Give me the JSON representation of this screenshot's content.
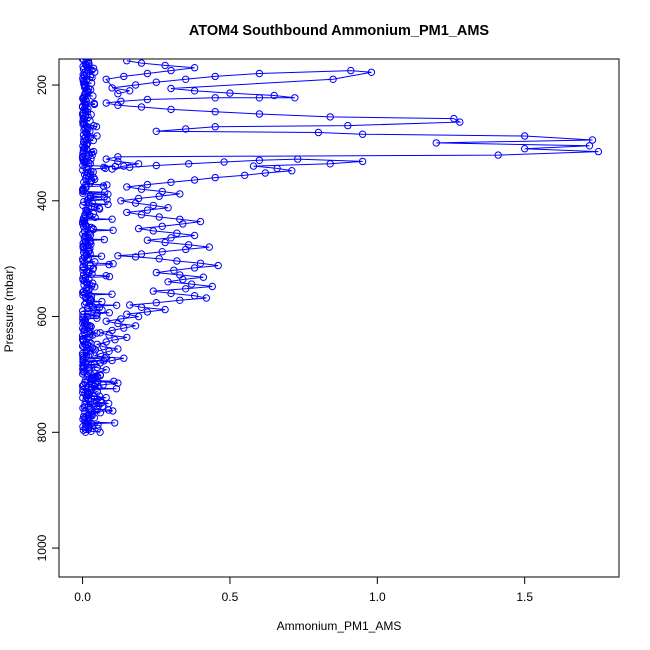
{
  "chart_data": {
    "type": "scatter",
    "title": "ATOM4 Southbound Ammonium_PM1_AMS",
    "xlabel": "Ammonium_PM1_AMS",
    "ylabel": "Pressure (mbar)",
    "xlim": [
      -0.08,
      1.82
    ],
    "ylim": [
      1050,
      155
    ],
    "y_reversed": true,
    "grid": false,
    "legend": "none",
    "x_ticks": [
      {
        "value": 0.0,
        "label": "0.0"
      },
      {
        "value": 0.5,
        "label": "0.5"
      },
      {
        "value": 1.0,
        "label": "1.0"
      },
      {
        "value": 1.5,
        "label": "1.5"
      }
    ],
    "y_ticks": [
      {
        "value": 200,
        "label": "200"
      },
      {
        "value": 400,
        "label": "400"
      },
      {
        "value": 600,
        "label": "600"
      },
      {
        "value": 800,
        "label": "800"
      },
      {
        "value": 1000,
        "label": "1000"
      }
    ],
    "colors": {
      "series": "#0000ff",
      "axis": "#000000"
    },
    "series": [
      {
        "marker": "open-circle",
        "connected": true,
        "points": [
          [
            0.01,
            800
          ],
          [
            0.02,
            795
          ],
          [
            0.01,
            790
          ],
          [
            0.03,
            785
          ],
          [
            0.02,
            780
          ],
          [
            0.04,
            775
          ],
          [
            0.02,
            770
          ],
          [
            0.03,
            765
          ],
          [
            0.05,
            760
          ],
          [
            0.02,
            755
          ],
          [
            0.04,
            750
          ],
          [
            0.06,
            745
          ],
          [
            0.03,
            742
          ],
          [
            0.08,
            740
          ],
          [
            0.04,
            738
          ],
          [
            0.02,
            735
          ],
          [
            0.05,
            730
          ],
          [
            0.03,
            725
          ],
          [
            0.04,
            720
          ],
          [
            0.07,
            718
          ],
          [
            0.12,
            715
          ],
          [
            0.05,
            712
          ],
          [
            0.03,
            708
          ],
          [
            0.06,
            702
          ],
          [
            0.04,
            698
          ],
          [
            0.08,
            692
          ],
          [
            0.05,
            688
          ],
          [
            0.03,
            684
          ],
          [
            0.06,
            680
          ],
          [
            0.1,
            676
          ],
          [
            0.14,
            672
          ],
          [
            0.08,
            670
          ],
          [
            0.04,
            668
          ],
          [
            0.06,
            664
          ],
          [
            0.09,
            660
          ],
          [
            0.12,
            656
          ],
          [
            0.07,
            652
          ],
          [
            0.05,
            648
          ],
          [
            0.08,
            644
          ],
          [
            0.11,
            640
          ],
          [
            0.15,
            636
          ],
          [
            0.09,
            632
          ],
          [
            0.06,
            628
          ],
          [
            0.1,
            624
          ],
          [
            0.14,
            620
          ],
          [
            0.18,
            616
          ],
          [
            0.12,
            612
          ],
          [
            0.08,
            608
          ],
          [
            0.13,
            604
          ],
          [
            0.19,
            600
          ],
          [
            0.15,
            596
          ],
          [
            0.22,
            592
          ],
          [
            0.28,
            588
          ],
          [
            0.2,
            584
          ],
          [
            0.16,
            580
          ],
          [
            0.25,
            576
          ],
          [
            0.33,
            572
          ],
          [
            0.42,
            568
          ],
          [
            0.38,
            564
          ],
          [
            0.3,
            560
          ],
          [
            0.24,
            556
          ],
          [
            0.35,
            552
          ],
          [
            0.44,
            548
          ],
          [
            0.37,
            544
          ],
          [
            0.29,
            540
          ],
          [
            0.34,
            536
          ],
          [
            0.41,
            532
          ],
          [
            0.33,
            528
          ],
          [
            0.25,
            524
          ],
          [
            0.31,
            520
          ],
          [
            0.38,
            516
          ],
          [
            0.46,
            512
          ],
          [
            0.4,
            508
          ],
          [
            0.32,
            504
          ],
          [
            0.26,
            500
          ],
          [
            0.18,
            497
          ],
          [
            0.12,
            495
          ],
          [
            0.2,
            492
          ],
          [
            0.27,
            488
          ],
          [
            0.35,
            484
          ],
          [
            0.43,
            480
          ],
          [
            0.36,
            476
          ],
          [
            0.28,
            472
          ],
          [
            0.22,
            468
          ],
          [
            0.3,
            464
          ],
          [
            0.38,
            460
          ],
          [
            0.32,
            456
          ],
          [
            0.24,
            452
          ],
          [
            0.19,
            448
          ],
          [
            0.27,
            444
          ],
          [
            0.34,
            440
          ],
          [
            0.4,
            436
          ],
          [
            0.33,
            432
          ],
          [
            0.26,
            428
          ],
          [
            0.2,
            424
          ],
          [
            0.15,
            420
          ],
          [
            0.22,
            416
          ],
          [
            0.29,
            412
          ],
          [
            0.24,
            408
          ],
          [
            0.18,
            404
          ],
          [
            0.13,
            400
          ],
          [
            0.19,
            396
          ],
          [
            0.26,
            392
          ],
          [
            0.33,
            388
          ],
          [
            0.27,
            384
          ],
          [
            0.2,
            380
          ],
          [
            0.15,
            376
          ],
          [
            0.22,
            372
          ],
          [
            0.3,
            368
          ],
          [
            0.38,
            364
          ],
          [
            0.45,
            360
          ],
          [
            0.55,
            356
          ],
          [
            0.62,
            352
          ],
          [
            0.71,
            348
          ],
          [
            0.66,
            344
          ],
          [
            0.58,
            340
          ],
          [
            0.84,
            336
          ],
          [
            0.95,
            332
          ],
          [
            0.73,
            328
          ],
          [
            0.6,
            330
          ],
          [
            0.48,
            333
          ],
          [
            0.36,
            336
          ],
          [
            0.25,
            339
          ],
          [
            0.16,
            342
          ],
          [
            0.1,
            345
          ],
          [
            0.14,
            340
          ],
          [
            0.19,
            336
          ],
          [
            0.12,
            332
          ],
          [
            0.08,
            328
          ],
          [
            0.12,
            324
          ],
          [
            1.41,
            321
          ],
          [
            1.75,
            315
          ],
          [
            1.5,
            310
          ],
          [
            1.72,
            305
          ],
          [
            1.2,
            300
          ],
          [
            1.73,
            295
          ],
          [
            1.5,
            288
          ],
          [
            0.95,
            285
          ],
          [
            0.8,
            282
          ],
          [
            0.25,
            280
          ],
          [
            0.35,
            276
          ],
          [
            0.45,
            272
          ],
          [
            0.9,
            270
          ],
          [
            1.28,
            264
          ],
          [
            1.26,
            258
          ],
          [
            0.84,
            255
          ],
          [
            0.6,
            250
          ],
          [
            0.45,
            246
          ],
          [
            0.3,
            242
          ],
          [
            0.2,
            238
          ],
          [
            0.12,
            235
          ],
          [
            0.08,
            231
          ],
          [
            0.13,
            228
          ],
          [
            0.22,
            225
          ],
          [
            0.45,
            222
          ],
          [
            0.6,
            222
          ],
          [
            0.72,
            222
          ],
          [
            0.65,
            218
          ],
          [
            0.5,
            214
          ],
          [
            0.38,
            210
          ],
          [
            0.3,
            206
          ],
          [
            0.85,
            190
          ],
          [
            0.98,
            178
          ],
          [
            0.91,
            175
          ],
          [
            0.6,
            180
          ],
          [
            0.45,
            185
          ],
          [
            0.35,
            190
          ],
          [
            0.25,
            195
          ],
          [
            0.18,
            200
          ],
          [
            0.1,
            205
          ],
          [
            0.16,
            210
          ],
          [
            0.12,
            215
          ],
          [
            0.08,
            190
          ],
          [
            0.14,
            185
          ],
          [
            0.22,
            180
          ],
          [
            0.3,
            175
          ],
          [
            0.38,
            170
          ],
          [
            0.28,
            166
          ],
          [
            0.2,
            162
          ],
          [
            0.15,
            158
          ]
        ]
      }
    ],
    "dense_column_note": null
  }
}
